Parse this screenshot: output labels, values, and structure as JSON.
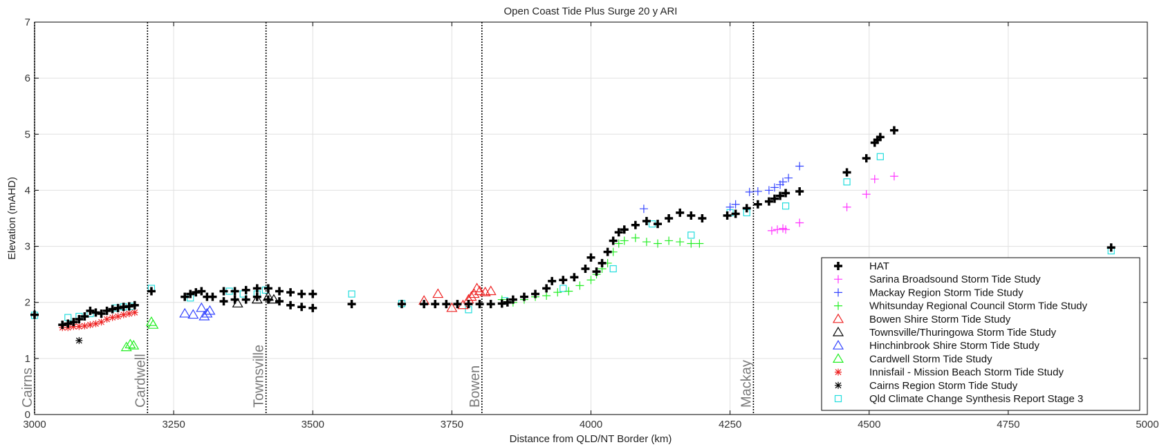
{
  "chart_data": {
    "type": "scatter",
    "title": "Open Coast Tide Plus Surge 20 y ARI",
    "xlabel": "Distance from QLD/NT Border (km)",
    "ylabel": "Elevation (mAHD)",
    "xlim": [
      3000,
      5000
    ],
    "ylim": [
      0,
      7
    ],
    "xticks": [
      "3000",
      "3250",
      "3500",
      "3750",
      "4000",
      "4250",
      "4500",
      "4750",
      "5000"
    ],
    "yticks": [
      "0",
      "1",
      "2",
      "3",
      "4",
      "5",
      "6",
      "7"
    ],
    "grid": true,
    "legend_position": "bottom-right",
    "locations": [
      {
        "name": "Cairns",
        "x": 3000
      },
      {
        "name": "Cardwell",
        "x": 3203
      },
      {
        "name": "Townsville",
        "x": 3416
      },
      {
        "name": "Bowen",
        "x": 3804
      },
      {
        "name": "Mackay",
        "x": 4292
      }
    ],
    "series": [
      {
        "name": "HAT",
        "marker": "bold-plus",
        "color": "#000000",
        "points": [
          [
            3000,
            1.78
          ],
          [
            3050,
            1.6
          ],
          [
            3060,
            1.62
          ],
          [
            3070,
            1.65
          ],
          [
            3080,
            1.7
          ],
          [
            3090,
            1.75
          ],
          [
            3100,
            1.85
          ],
          [
            3110,
            1.82
          ],
          [
            3120,
            1.8
          ],
          [
            3130,
            1.85
          ],
          [
            3140,
            1.88
          ],
          [
            3150,
            1.9
          ],
          [
            3160,
            1.92
          ],
          [
            3170,
            1.93
          ],
          [
            3180,
            1.95
          ],
          [
            3210,
            2.2
          ],
          [
            3270,
            2.1
          ],
          [
            3280,
            2.15
          ],
          [
            3290,
            2.18
          ],
          [
            3300,
            2.2
          ],
          [
            3310,
            2.1
          ],
          [
            3320,
            2.1
          ],
          [
            3340,
            2.2
          ],
          [
            3340,
            2.02
          ],
          [
            3360,
            2.2
          ],
          [
            3360,
            2.05
          ],
          [
            3380,
            2.22
          ],
          [
            3380,
            2.05
          ],
          [
            3400,
            2.25
          ],
          [
            3400,
            2.1
          ],
          [
            3420,
            2.25
          ],
          [
            3420,
            2.05
          ],
          [
            3440,
            2.2
          ],
          [
            3440,
            2.02
          ],
          [
            3460,
            2.18
          ],
          [
            3460,
            1.95
          ],
          [
            3480,
            2.15
          ],
          [
            3480,
            1.92
          ],
          [
            3500,
            2.15
          ],
          [
            3500,
            1.9
          ],
          [
            3570,
            1.97
          ],
          [
            3660,
            1.97
          ],
          [
            3700,
            1.97
          ],
          [
            3720,
            1.97
          ],
          [
            3740,
            1.97
          ],
          [
            3760,
            1.97
          ],
          [
            3780,
            1.97
          ],
          [
            3800,
            1.97
          ],
          [
            3820,
            1.97
          ],
          [
            3840,
            1.98
          ],
          [
            3850,
            2.0
          ],
          [
            3860,
            2.05
          ],
          [
            3880,
            2.1
          ],
          [
            3900,
            2.15
          ],
          [
            3920,
            2.25
          ],
          [
            3930,
            2.38
          ],
          [
            3950,
            2.4
          ],
          [
            3970,
            2.45
          ],
          [
            3990,
            2.6
          ],
          [
            4000,
            2.8
          ],
          [
            4010,
            2.55
          ],
          [
            4020,
            2.7
          ],
          [
            4030,
            2.9
          ],
          [
            4040,
            3.1
          ],
          [
            4050,
            3.25
          ],
          [
            4060,
            3.3
          ],
          [
            4080,
            3.38
          ],
          [
            4100,
            3.45
          ],
          [
            4120,
            3.4
          ],
          [
            4140,
            3.5
          ],
          [
            4160,
            3.6
          ],
          [
            4180,
            3.55
          ],
          [
            4200,
            3.5
          ],
          [
            4245,
            3.55
          ],
          [
            4260,
            3.58
          ],
          [
            4280,
            3.68
          ],
          [
            4300,
            3.75
          ],
          [
            4320,
            3.8
          ],
          [
            4330,
            3.85
          ],
          [
            4340,
            3.9
          ],
          [
            4350,
            3.95
          ],
          [
            4375,
            3.98
          ],
          [
            4460,
            4.32
          ],
          [
            4495,
            4.57
          ],
          [
            4510,
            4.85
          ],
          [
            4515,
            4.9
          ],
          [
            4520,
            4.95
          ],
          [
            4545,
            5.07
          ],
          [
            4935,
            2.98
          ]
        ]
      },
      {
        "name": "Sarina Broadsound Storm Tide Study",
        "marker": "plus",
        "color": "#ff33ff",
        "points": [
          [
            4325,
            3.28
          ],
          [
            4335,
            3.3
          ],
          [
            4345,
            3.32
          ],
          [
            4350,
            3.3
          ],
          [
            4375,
            3.42
          ],
          [
            4460,
            3.7
          ],
          [
            4495,
            3.93
          ],
          [
            4510,
            4.2
          ],
          [
            4545,
            4.25
          ]
        ]
      },
      {
        "name": "Mackay Region Storm Tide Study",
        "marker": "plus",
        "color": "#3344ff",
        "points": [
          [
            4095,
            3.67
          ],
          [
            4250,
            3.7
          ],
          [
            4260,
            3.75
          ],
          [
            4285,
            3.97
          ],
          [
            4300,
            3.98
          ],
          [
            4320,
            4.0
          ],
          [
            4330,
            4.05
          ],
          [
            4340,
            4.1
          ],
          [
            4345,
            4.15
          ],
          [
            4355,
            4.22
          ],
          [
            4375,
            4.43
          ]
        ]
      },
      {
        "name": "Whitsunday Regional Council Storm Tide Study",
        "marker": "plus",
        "color": "#22ee22",
        "points": [
          [
            3840,
            2.05
          ],
          [
            3860,
            2.0
          ],
          [
            3880,
            2.05
          ],
          [
            3900,
            2.1
          ],
          [
            3920,
            2.12
          ],
          [
            3940,
            2.18
          ],
          [
            3960,
            2.2
          ],
          [
            3980,
            2.3
          ],
          [
            4000,
            2.4
          ],
          [
            4010,
            2.5
          ],
          [
            4020,
            2.6
          ],
          [
            4030,
            2.7
          ],
          [
            4040,
            2.9
          ],
          [
            4050,
            3.05
          ],
          [
            4060,
            3.1
          ],
          [
            4080,
            3.15
          ],
          [
            4100,
            3.08
          ],
          [
            4120,
            3.05
          ],
          [
            4140,
            3.1
          ],
          [
            4160,
            3.08
          ],
          [
            4180,
            3.05
          ],
          [
            4195,
            3.05
          ]
        ]
      },
      {
        "name": "Bowen Shire Storm Tide Study",
        "marker": "triangle",
        "color": "#ee2222",
        "points": [
          [
            3700,
            2.03
          ],
          [
            3725,
            2.15
          ],
          [
            3750,
            1.9
          ],
          [
            3770,
            1.95
          ],
          [
            3780,
            2.05
          ],
          [
            3785,
            2.1
          ],
          [
            3790,
            2.15
          ],
          [
            3795,
            2.25
          ],
          [
            3800,
            2.2
          ],
          [
            3810,
            2.18
          ],
          [
            3820,
            2.2
          ]
        ]
      },
      {
        "name": "Townsville/Thuringowa Storm Tide Study",
        "marker": "triangle",
        "color": "#000000",
        "points": [
          [
            3365,
            1.98
          ],
          [
            3400,
            2.05
          ],
          [
            3420,
            2.1
          ],
          [
            3430,
            2.05
          ]
        ]
      },
      {
        "name": "Hinchinbrook Shire Storm Tide Study",
        "marker": "triangle",
        "color": "#3344ff",
        "points": [
          [
            3270,
            1.8
          ],
          [
            3285,
            1.78
          ],
          [
            3300,
            1.9
          ],
          [
            3305,
            1.75
          ],
          [
            3310,
            1.8
          ],
          [
            3315,
            1.85
          ]
        ]
      },
      {
        "name": "Cardwell Storm Tide Study",
        "marker": "triangle",
        "color": "#22ee22",
        "points": [
          [
            3165,
            1.2
          ],
          [
            3172,
            1.25
          ],
          [
            3178,
            1.23
          ],
          [
            3210,
            1.65
          ],
          [
            3213,
            1.6
          ]
        ]
      },
      {
        "name": "Innisfail - Mission Beach Storm Tide Study",
        "marker": "asterisk",
        "color": "#ee2222",
        "points": [
          [
            3050,
            1.55
          ],
          [
            3060,
            1.55
          ],
          [
            3070,
            1.57
          ],
          [
            3080,
            1.57
          ],
          [
            3090,
            1.58
          ],
          [
            3100,
            1.6
          ],
          [
            3110,
            1.62
          ],
          [
            3120,
            1.65
          ],
          [
            3130,
            1.7
          ],
          [
            3140,
            1.73
          ],
          [
            3150,
            1.75
          ],
          [
            3160,
            1.78
          ],
          [
            3170,
            1.8
          ],
          [
            3180,
            1.82
          ]
        ]
      },
      {
        "name": "Cairns Region Storm Tide Study",
        "marker": "asterisk",
        "color": "#000000",
        "points": [
          [
            3080,
            1.32
          ]
        ]
      },
      {
        "name": "Qld Climate Change Synthesis Report Stage 3",
        "marker": "square",
        "color": "#22dddd",
        "points": [
          [
            3000,
            1.77
          ],
          [
            3060,
            1.73
          ],
          [
            3080,
            1.75
          ],
          [
            3100,
            1.8
          ],
          [
            3145,
            1.9
          ],
          [
            3160,
            1.92
          ],
          [
            3175,
            1.93
          ],
          [
            3210,
            2.25
          ],
          [
            3280,
            2.08
          ],
          [
            3350,
            2.2
          ],
          [
            3375,
            2.15
          ],
          [
            3400,
            2.15
          ],
          [
            3415,
            2.22
          ],
          [
            3570,
            2.15
          ],
          [
            3660,
            1.98
          ],
          [
            3780,
            1.87
          ],
          [
            3845,
            2.03
          ],
          [
            3950,
            2.25
          ],
          [
            4040,
            2.6
          ],
          [
            4110,
            3.4
          ],
          [
            4180,
            3.2
          ],
          [
            4250,
            3.6
          ],
          [
            4280,
            3.6
          ],
          [
            4350,
            3.72
          ],
          [
            4460,
            4.15
          ],
          [
            4520,
            4.6
          ],
          [
            4935,
            2.92
          ]
        ]
      }
    ]
  }
}
